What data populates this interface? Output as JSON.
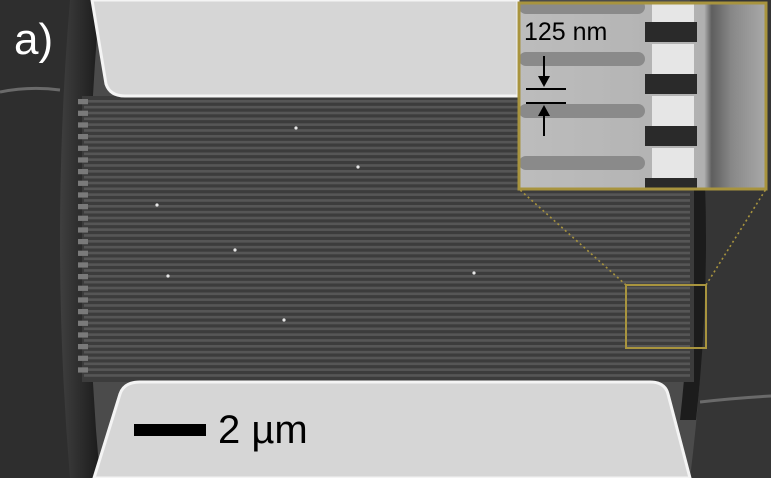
{
  "panel_label": "a)",
  "scale_bar": {
    "label": "2 µm"
  },
  "inset": {
    "dimension_label": "125 nm"
  },
  "colors": {
    "substrate": "#4b4b4b",
    "pad": "#d8d8d8",
    "pad_edge": "#f2f2f2",
    "grating_dark": "#3a3a3a",
    "grating_light": "#565656",
    "inset_frame": "#a8943e",
    "zoom_box": "#a8943e"
  },
  "grating_line_count": 48
}
